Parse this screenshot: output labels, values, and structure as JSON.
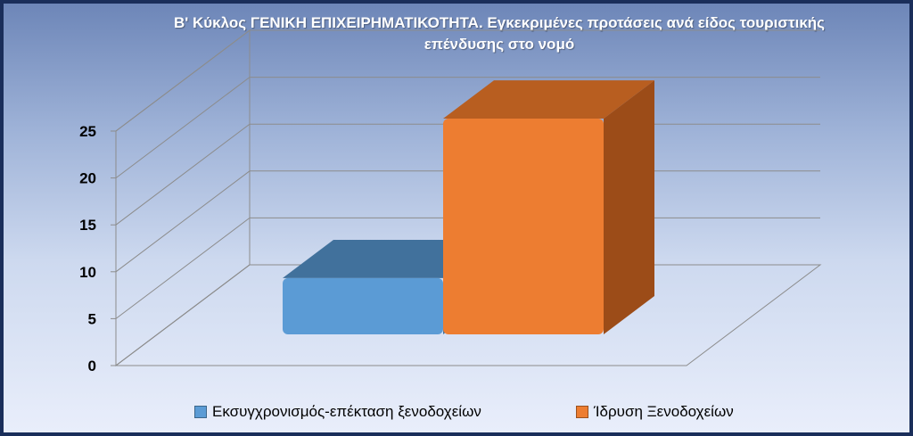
{
  "chart_data": {
    "type": "bar",
    "title_lines": [
      "Β' Κύκλος ΓΕΝΙΚΗ ΕΠΙΧΕΙΡΗΜΑΤΙΚΟΤΗΤΑ.  Εγκεκριμένες προτάσεις ανά είδος τουριστικής",
      "επένδυσης στο νομό"
    ],
    "categories": [
      ""
    ],
    "series": [
      {
        "name": "Εκσυγχρονισμός-επέκταση  ξενοδοχείων",
        "values": [
          6
        ],
        "color": "#5b9bd5",
        "top_color": "#41719c",
        "side_color": "#3e6e9e"
      },
      {
        "name": "Ίδρυση Ξενοδοχείων",
        "values": [
          23
        ],
        "color": "#ed7d31",
        "top_color": "#b85e20",
        "side_color": "#9c4c18"
      }
    ],
    "y_ticks": [
      "0",
      "5",
      "10",
      "15",
      "20",
      "25"
    ],
    "ylim": [
      0,
      25
    ],
    "grid": true,
    "legend_position": "bottom"
  }
}
